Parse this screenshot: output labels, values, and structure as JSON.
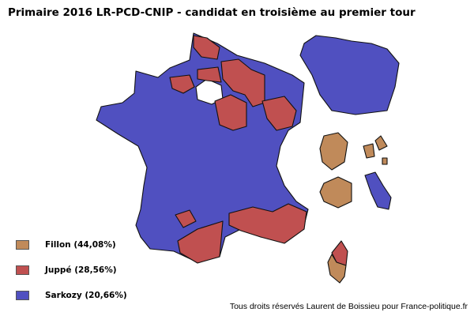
{
  "title": "Primaire 2016 LR-PCD-CNIP - candidat en troisième au premier tour",
  "colors": {
    "fillon": "#c08a5a",
    "juppe": "#c05050",
    "sarkozy": "#5050c0"
  },
  "legend": [
    {
      "label": "Fillon (44,08%)",
      "color": "#c08a5a"
    },
    {
      "label": "Juppé (28,56%)",
      "color": "#c05050"
    },
    {
      "label": "Sarkozy (20,66%)",
      "color": "#5050c0"
    }
  ],
  "credit": "Tous droits réservés Laurent de Boissieu pour France-politique.fr"
}
